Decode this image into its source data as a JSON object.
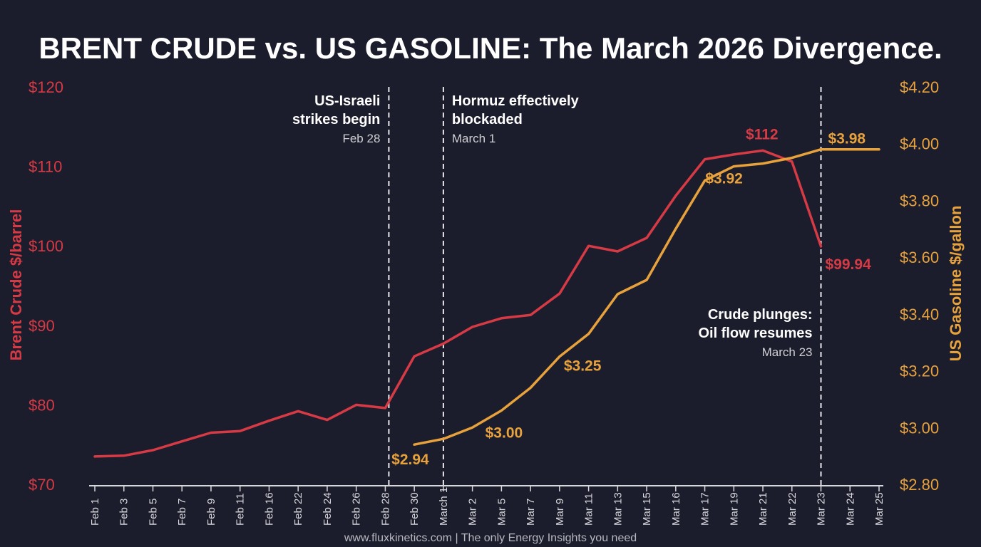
{
  "chart_data": {
    "type": "line",
    "title": "BRENT CRUDE vs. US GASOLINE: The March 2026 Divergence.",
    "ylabel_left": "Brent Crude $/barrel",
    "ylabel_right": "US Gasoline $/gallon",
    "ylim_left": [
      70,
      120
    ],
    "ylim_right": [
      2.8,
      4.2
    ],
    "yticks_left": [
      "$70",
      "$80",
      "$90",
      "$100",
      "$110",
      "$120"
    ],
    "yticks_right": [
      "$2.80",
      "$3.00",
      "$3.20",
      "$3.40",
      "$3.60",
      "$3.80",
      "$4.00",
      "$4.20"
    ],
    "categories": [
      "Feb 1",
      "Feb 3",
      "Feb 5",
      "Feb 7",
      "Feb 9",
      "Feb 11",
      "Feb 16",
      "Feb 22",
      "Feb 24",
      "Feb 26",
      "Feb 28",
      "Feb 30",
      "March 1",
      "Mar 2",
      "Mar 5",
      "Mar 7",
      "Mar 9",
      "Mar 11",
      "Mar 13",
      "Mar 15",
      "Mar 16",
      "Mar 17",
      "Mar 19",
      "Mar 21",
      "Mar 22",
      "Mar 23",
      "Mar 24",
      "Mar 25"
    ],
    "grid": false,
    "series": [
      {
        "name": "Brent Crude",
        "axis": "left",
        "color": "#d63a45",
        "values": [
          73.5,
          73.6,
          74.3,
          75.4,
          76.5,
          76.7,
          78.0,
          79.2,
          78.1,
          80.0,
          79.6,
          86.1,
          87.7,
          89.8,
          90.9,
          91.3,
          94.0,
          100.0,
          99.3,
          101.0,
          106.3,
          110.9,
          111.5,
          112.0,
          110.6,
          99.94,
          null,
          null
        ]
      },
      {
        "name": "US Gasoline",
        "axis": "right",
        "color": "#e8a23c",
        "values": [
          null,
          null,
          null,
          null,
          null,
          null,
          null,
          null,
          null,
          null,
          null,
          2.94,
          2.96,
          3.0,
          3.06,
          3.14,
          3.25,
          3.33,
          3.47,
          3.52,
          3.7,
          3.87,
          3.92,
          3.93,
          3.95,
          3.98,
          3.98,
          3.98
        ]
      }
    ],
    "data_labels": [
      {
        "series": "US Gasoline",
        "category": "Feb 30",
        "text": "$2.94"
      },
      {
        "series": "US Gasoline",
        "category": "Mar 2",
        "text": "$3.00"
      },
      {
        "series": "US Gasoline",
        "category": "Mar 9",
        "text": "$3.25"
      },
      {
        "series": "US Gasoline",
        "category": "Mar 19",
        "text": "$3.92"
      },
      {
        "series": "US Gasoline",
        "category": "Mar 23",
        "text": "$3.98"
      },
      {
        "series": "Brent Crude",
        "category": "Mar 21",
        "text": "$112"
      },
      {
        "series": "Brent Crude",
        "category": "Mar 23",
        "text": "$99.94"
      }
    ],
    "annotations": [
      {
        "category": "Feb 28",
        "title_lines": [
          "US-Israeli",
          "strikes begin"
        ],
        "date": "Feb 28",
        "align": "left-of-line"
      },
      {
        "category": "March 1",
        "title_lines": [
          "Hormuz effectively",
          "blockaded"
        ],
        "date": "March 1",
        "align": "right-of-line"
      },
      {
        "category": "Mar 23",
        "title_lines": [
          "Crude plunges:",
          "Oil flow resumes"
        ],
        "date": "March 23",
        "align": "left-of-line"
      }
    ]
  },
  "footer": "www.fluxkinetics.com  |  The only Energy Insights you need"
}
